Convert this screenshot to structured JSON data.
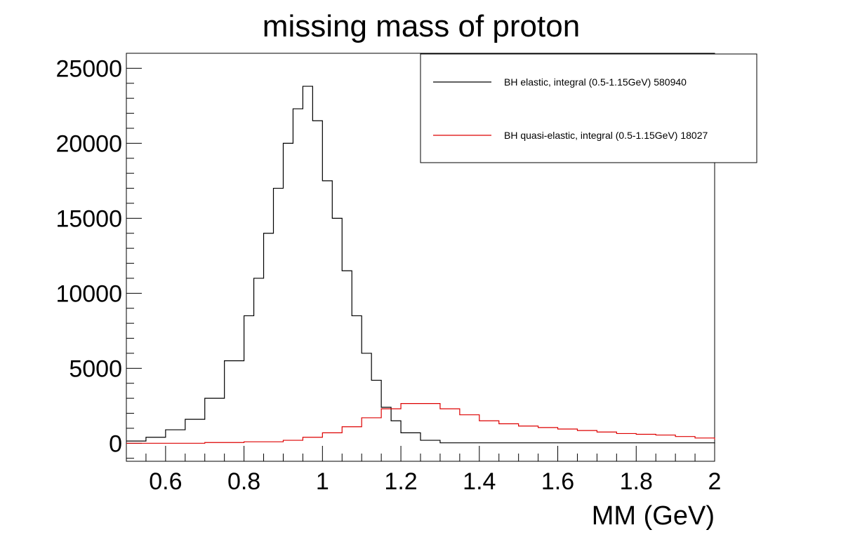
{
  "chart_data": {
    "type": "line",
    "title": "missing mass of proton",
    "xlabel": "MM (GeV)",
    "ylabel": "",
    "xlim": [
      0.5,
      2.0
    ],
    "ylim": [
      -1200,
      26000
    ],
    "xticks": [
      0.6,
      0.8,
      1.0,
      1.2,
      1.4,
      1.6,
      1.8,
      2.0
    ],
    "xtick_labels": [
      "0.6",
      "0.8",
      "1",
      "1.2",
      "1.4",
      "1.6",
      "1.8",
      "2"
    ],
    "yticks": [
      0,
      5000,
      10000,
      15000,
      20000,
      25000
    ],
    "ytick_labels": [
      "0",
      "5000",
      "10000",
      "15000",
      "20000",
      "25000"
    ],
    "grid": false,
    "legend_position": "top-right",
    "series": [
      {
        "name": "BH elastic, integral (0.5-1.15GeV) 580940",
        "color": "#000000",
        "step": "histogram",
        "x": [
          0.5,
          0.55,
          0.6,
          0.65,
          0.7,
          0.75,
          0.8,
          0.825,
          0.85,
          0.875,
          0.9,
          0.925,
          0.95,
          0.975,
          1.0,
          1.025,
          1.05,
          1.075,
          1.1,
          1.125,
          1.15,
          1.175,
          1.2,
          1.25,
          1.3,
          2.0
        ],
        "y": [
          150,
          400,
          900,
          1600,
          3000,
          5500,
          8500,
          11000,
          14000,
          17000,
          20000,
          22300,
          23800,
          21500,
          17500,
          15000,
          11500,
          8500,
          6000,
          4200,
          2400,
          1500,
          700,
          200,
          30,
          0
        ]
      },
      {
        "name": "BH quasi-elastic, integral (0.5-1.15GeV) 18027",
        "color": "#dd0000",
        "step": "histogram",
        "x": [
          0.5,
          0.7,
          0.8,
          0.9,
          0.95,
          1.0,
          1.05,
          1.1,
          1.15,
          1.2,
          1.25,
          1.3,
          1.35,
          1.4,
          1.45,
          1.5,
          1.55,
          1.6,
          1.65,
          1.7,
          1.75,
          1.8,
          1.85,
          1.9,
          1.95,
          2.0
        ],
        "y": [
          0,
          50,
          100,
          200,
          400,
          700,
          1100,
          1700,
          2300,
          2650,
          2650,
          2300,
          1900,
          1500,
          1300,
          1150,
          1050,
          950,
          850,
          750,
          650,
          600,
          550,
          450,
          350,
          250
        ]
      }
    ]
  }
}
